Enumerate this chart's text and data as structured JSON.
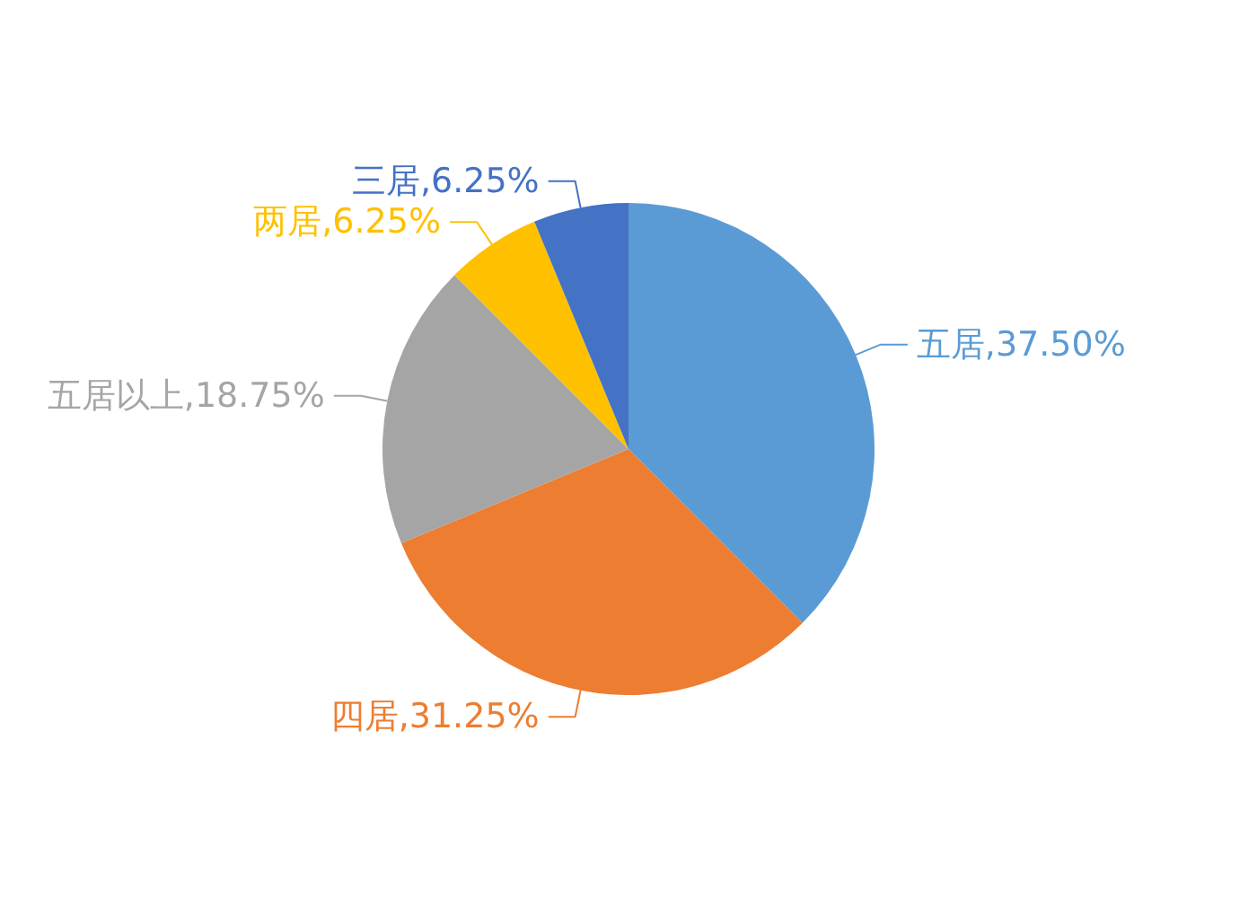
{
  "chart_data": {
    "type": "pie",
    "categories": [
      "五居",
      "四居",
      "五居以上",
      "两居",
      "三居"
    ],
    "values": [
      37.5,
      31.25,
      18.75,
      6.25,
      6.25
    ],
    "colors": [
      "#5b9bd5",
      "#ed7d31",
      "#a5a5a5",
      "#ffc000",
      "#4472c4"
    ],
    "value_labels": [
      "37.50%",
      "31.25%",
      "18.75%",
      "6.25%",
      "6.25%"
    ]
  }
}
